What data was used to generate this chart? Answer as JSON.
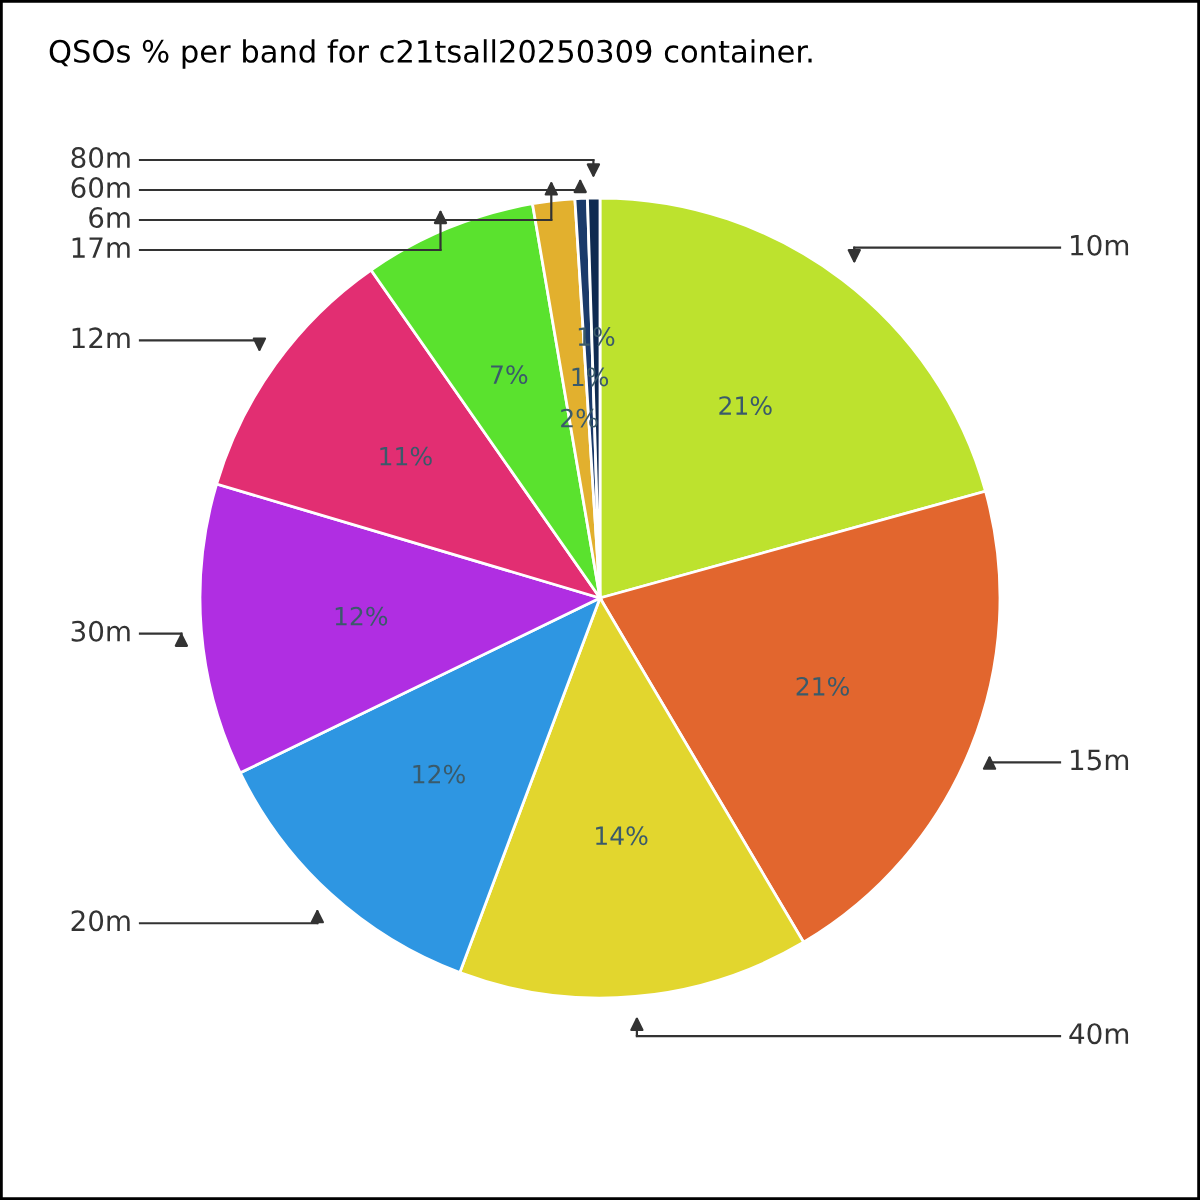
{
  "chart_data": {
    "type": "pie",
    "title": "QSOs % per band for c21tsall20250309 container.",
    "categories": [
      "10m",
      "15m",
      "40m",
      "20m",
      "30m",
      "12m",
      "17m",
      "6m",
      "60m",
      "80m"
    ],
    "values": [
      20.7,
      20.8,
      14.2,
      12.1,
      11.8,
      10.7,
      7.0,
      1.7,
      0.5,
      0.5
    ],
    "colors": [
      "#bde22e",
      "#e2662e",
      "#e2d62e",
      "#2e96e2",
      "#b02ee2",
      "#e22e72",
      "#5ae22e",
      "#e2b02e",
      "#1a3a6a",
      "#0f2a50"
    ],
    "value_labels": [
      "21%",
      "21%",
      "14%",
      "12%",
      "12%",
      "11%",
      "7%",
      "2%",
      "1%",
      "1%"
    ]
  }
}
